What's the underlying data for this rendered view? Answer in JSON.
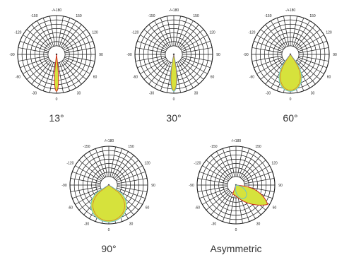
{
  "colors": {
    "grid": "#1a1a1a",
    "fill": "#d6e23c",
    "outline_red": "#d02a1e",
    "outline_cyan": "#6ac3c8",
    "text": "#333333"
  },
  "angle_labels": [
    "-/+180",
    "150",
    "120",
    "90",
    "60",
    "30",
    "0",
    "-30",
    "-60",
    "-90",
    "-120",
    "-150"
  ],
  "diagrams": [
    {
      "caption": "13°",
      "beam_angle_deg": 13
    },
    {
      "caption": "30°",
      "beam_angle_deg": 30
    },
    {
      "caption": "60°",
      "beam_angle_deg": 60
    },
    {
      "caption": "90°",
      "beam_angle_deg": 90
    },
    {
      "caption": "Asymmetric",
      "beam_angle_deg": null
    }
  ]
}
